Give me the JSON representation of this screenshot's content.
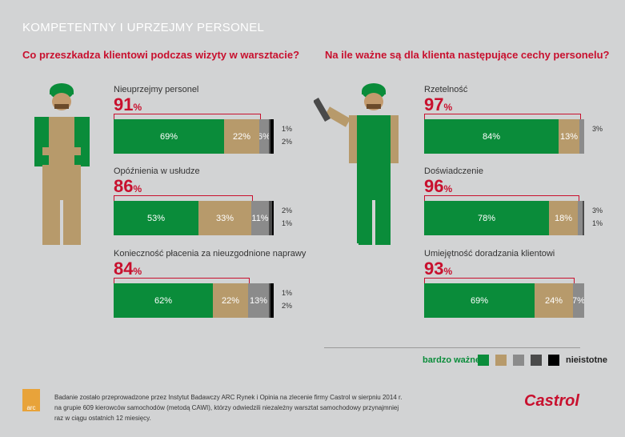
{
  "title": "KOMPETENTNY I UPRZEJMY PERSONEL",
  "colors": {
    "green": "#0a8c3a",
    "tan": "#b79a6b",
    "grey": "#8b8b8b",
    "dark": "#4a4a4a",
    "black": "#000000",
    "red": "#c8102e"
  },
  "left": {
    "question": "Co przeszkadza klientowi podczas wizyty w warsztacie?",
    "items": [
      {
        "label": "Nieuprzejmy personel",
        "total": "91",
        "pct": "%",
        "values": [
          69,
          22,
          6,
          1,
          2
        ],
        "labels": [
          "69%",
          "22%",
          "6%"
        ],
        "side": [
          "1%",
          "2%"
        ]
      },
      {
        "label": "Opóźnienia w usłudze",
        "total": "86",
        "pct": "%",
        "values": [
          53,
          33,
          11,
          2,
          1
        ],
        "labels": [
          "53%",
          "33%",
          "11%"
        ],
        "side": [
          "2%",
          "1%"
        ]
      },
      {
        "label": "Konieczność płacenia za nieuzgodnione naprawy",
        "total": "84",
        "pct": "%",
        "values": [
          62,
          22,
          13,
          1,
          2
        ],
        "labels": [
          "62%",
          "22%",
          "13%"
        ],
        "side": [
          "1%",
          "2%"
        ]
      }
    ]
  },
  "right": {
    "question": "Na ile ważne są dla klienta następujące cechy personelu?",
    "items": [
      {
        "label": "Rzetelność",
        "total": "97",
        "pct": "%",
        "values": [
          84,
          13,
          3,
          0,
          0
        ],
        "labels": [
          "84%",
          "13%",
          ""
        ],
        "side": [
          "3%"
        ]
      },
      {
        "label": "Doświadczenie",
        "total": "96",
        "pct": "%",
        "values": [
          78,
          18,
          3,
          1,
          0
        ],
        "labels": [
          "78%",
          "18%",
          ""
        ],
        "side": [
          "3%",
          "1%"
        ]
      },
      {
        "label": "Umiejętność doradzania klientowi",
        "total": "93",
        "pct": "%",
        "values": [
          69,
          24,
          7,
          0,
          0
        ],
        "labels": [
          "69%",
          "24%",
          "7%"
        ],
        "side": []
      }
    ]
  },
  "legend": {
    "left": "bardzo ważne",
    "right": "nieistotne"
  },
  "note": "Badanie zostało przeprowadzone przez Instytut Badawczy ARC Rynek i Opinia na zlecenie firmy Castrol w sierpniu 2014 r. na grupie 609 kierowców samochodów (metodą CAWI), którzy odwiedzili niezależny warsztat samochodowy przynajmniej raz w ciągu ostatnich 12 miesięcy.",
  "arc_logo": "arc",
  "castrol_logo": "Castrol",
  "chart_data": [
    {
      "type": "bar",
      "title": "Co przeszkadza klientowi podczas wizyty w warsztacie?",
      "categories": [
        "Nieuprzejmy personel",
        "Opóźnienia w usłudze",
        "Konieczność płacenia za nieuzgodnione naprawy"
      ],
      "series": [
        {
          "name": "1",
          "values": [
            69,
            53,
            62
          ]
        },
        {
          "name": "2",
          "values": [
            22,
            33,
            22
          ]
        },
        {
          "name": "3",
          "values": [
            6,
            11,
            13
          ]
        },
        {
          "name": "4",
          "values": [
            1,
            2,
            1
          ]
        },
        {
          "name": "5",
          "values": [
            2,
            1,
            2
          ]
        }
      ],
      "totals": [
        91,
        86,
        84
      ]
    },
    {
      "type": "bar",
      "title": "Na ile ważne są dla klienta następujące cechy personelu?",
      "categories": [
        "Rzetelność",
        "Doświadczenie",
        "Umiejętność doradzania klientowi"
      ],
      "series": [
        {
          "name": "1",
          "values": [
            84,
            78,
            69
          ]
        },
        {
          "name": "2",
          "values": [
            13,
            18,
            24
          ]
        },
        {
          "name": "3",
          "values": [
            3,
            3,
            7
          ]
        },
        {
          "name": "4",
          "values": [
            0,
            1,
            0
          ]
        },
        {
          "name": "5",
          "values": [
            0,
            0,
            0
          ]
        }
      ],
      "totals": [
        97,
        96,
        93
      ]
    }
  ]
}
